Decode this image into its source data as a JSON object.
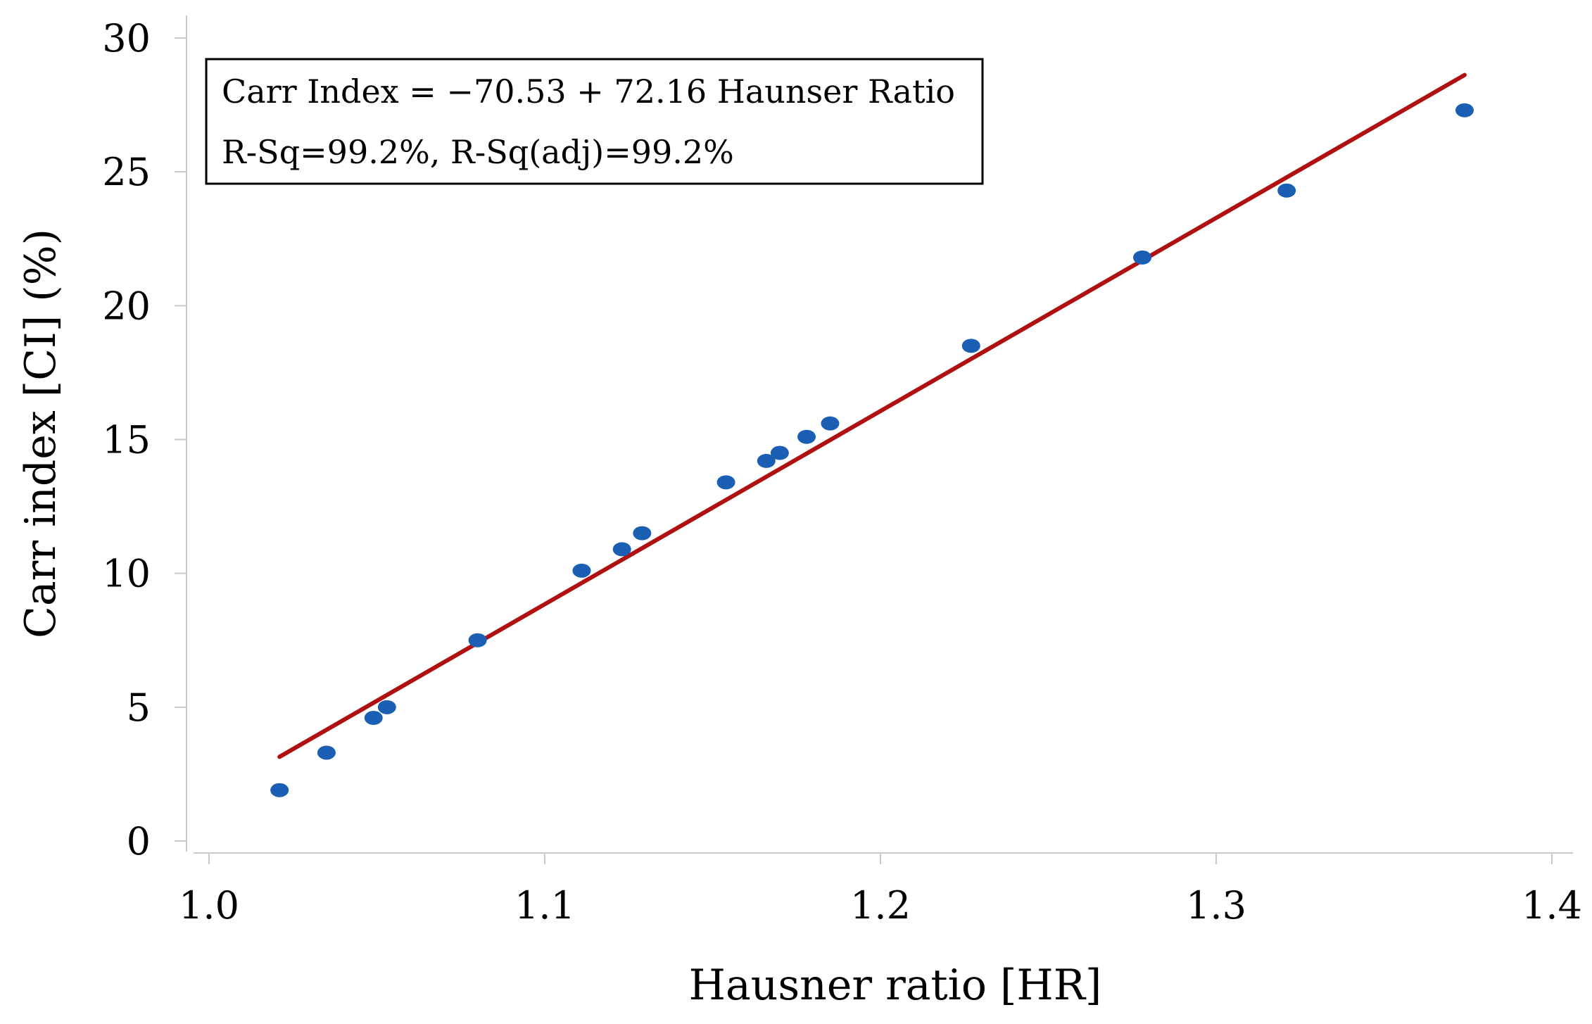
{
  "chart_data": {
    "type": "scatter",
    "xlabel": "Hausner ratio [HR]",
    "ylabel": "Carr index [CI] (%)",
    "xlim": [
      1.0,
      1.4
    ],
    "ylim": [
      0,
      30
    ],
    "x_ticks": [
      1.0,
      1.1,
      1.2,
      1.3,
      1.4
    ],
    "x_tick_labels": [
      "1.0",
      "1.1",
      "1.2",
      "1.3",
      "1.4"
    ],
    "y_ticks": [
      0,
      5,
      10,
      15,
      20,
      25,
      30
    ],
    "y_tick_labels": [
      "0",
      "5",
      "10",
      "15",
      "20",
      "25",
      "30"
    ],
    "grid": false,
    "series": [
      {
        "type": "scatter",
        "color": "#1a5fb4",
        "points": [
          {
            "x": 1.021,
            "y": 1.9
          },
          {
            "x": 1.035,
            "y": 3.3
          },
          {
            "x": 1.049,
            "y": 4.6
          },
          {
            "x": 1.053,
            "y": 5.0
          },
          {
            "x": 1.08,
            "y": 7.5
          },
          {
            "x": 1.111,
            "y": 10.1
          },
          {
            "x": 1.123,
            "y": 10.9
          },
          {
            "x": 1.129,
            "y": 11.5
          },
          {
            "x": 1.154,
            "y": 13.4
          },
          {
            "x": 1.166,
            "y": 14.2
          },
          {
            "x": 1.17,
            "y": 14.5
          },
          {
            "x": 1.178,
            "y": 15.1
          },
          {
            "x": 1.185,
            "y": 15.6
          },
          {
            "x": 1.227,
            "y": 18.5
          },
          {
            "x": 1.278,
            "y": 21.8
          },
          {
            "x": 1.321,
            "y": 24.3
          },
          {
            "x": 1.374,
            "y": 27.3
          }
        ]
      },
      {
        "type": "line",
        "color": "#b01010",
        "intercept": -70.53,
        "slope": 72.16,
        "x_range": [
          1.021,
          1.374
        ]
      }
    ],
    "annotation": {
      "line1": "Carr Index = −70.53 + 72.16 Haunser Ratio",
      "line2": "R-Sq=99.2%, R-Sq(adj)=99.2%"
    }
  }
}
